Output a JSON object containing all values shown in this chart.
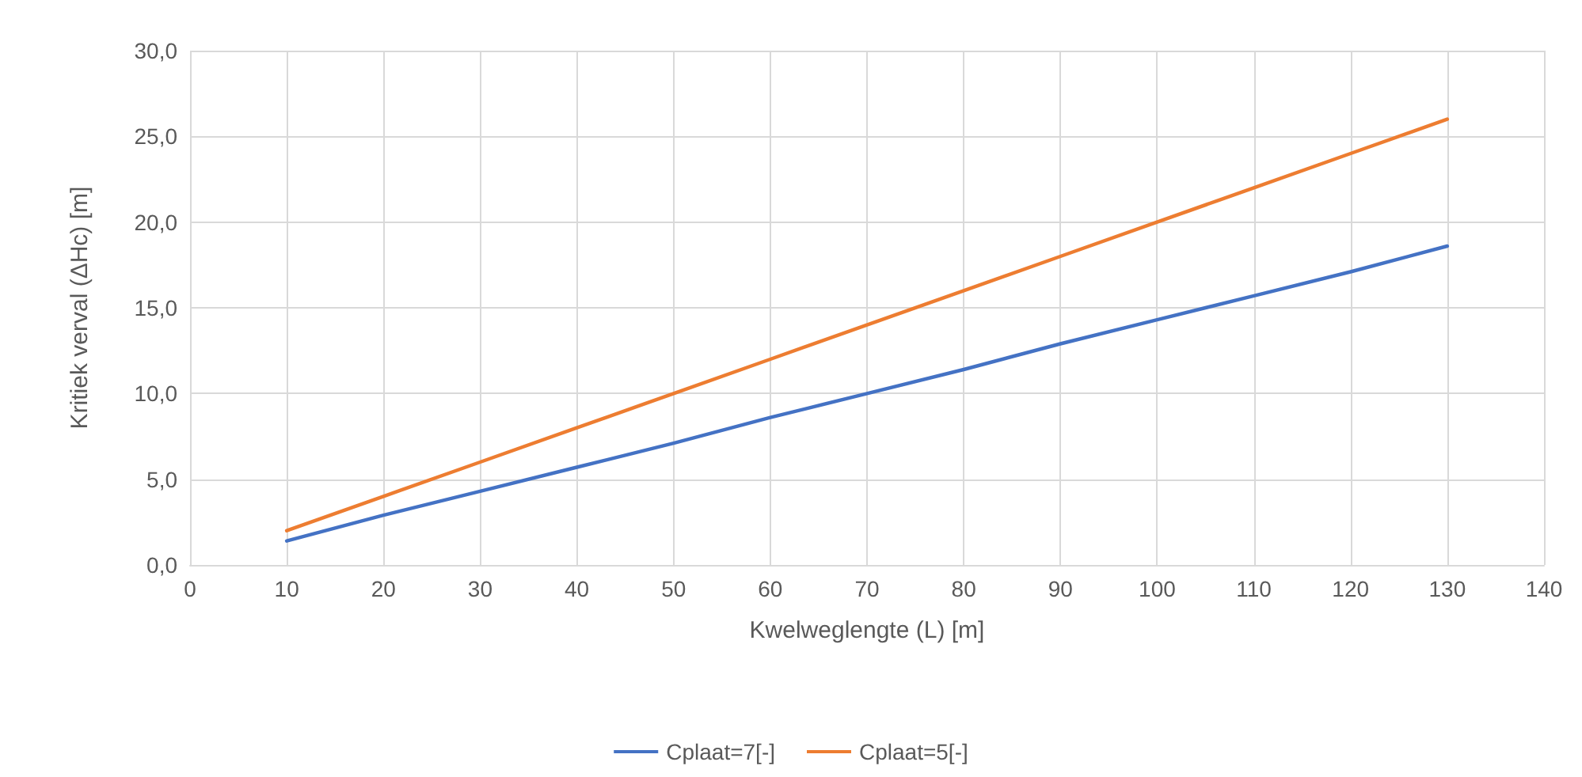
{
  "chart_data": {
    "type": "line",
    "xlabel": "Kwelweglengte (L) [m]",
    "ylabel": "Kritiek verval (ΔHc) [m]",
    "x": [
      10,
      20,
      30,
      40,
      50,
      60,
      70,
      80,
      90,
      100,
      110,
      120,
      130
    ],
    "series": [
      {
        "name": "Cplaat=7[-]",
        "color": "#4472c4",
        "values": [
          1.4,
          2.9,
          4.3,
          5.7,
          7.1,
          8.6,
          10.0,
          11.4,
          12.9,
          14.3,
          15.7,
          17.1,
          18.6
        ]
      },
      {
        "name": "Cplaat=5[-]",
        "color": "#ed7d31",
        "values": [
          2.0,
          4.0,
          6.0,
          8.0,
          10.0,
          12.0,
          14.0,
          16.0,
          18.0,
          20.0,
          22.0,
          24.0,
          26.0
        ]
      }
    ],
    "xlim": [
      0,
      140
    ],
    "xticks": [
      0,
      10,
      20,
      30,
      40,
      50,
      60,
      70,
      80,
      90,
      100,
      110,
      120,
      130,
      140
    ],
    "ylim": [
      0,
      30
    ],
    "yticks": [
      {
        "value": 0,
        "label": "0,0"
      },
      {
        "value": 5,
        "label": "5,0"
      },
      {
        "value": 10,
        "label": "10,0"
      },
      {
        "value": 15,
        "label": "15,0"
      },
      {
        "value": 20,
        "label": "20,0"
      },
      {
        "value": 25,
        "label": "25,0"
      },
      {
        "value": 30,
        "label": "30,0"
      }
    ],
    "grid": true,
    "legend": "bottom",
    "marker": "none",
    "line_style": "solid"
  }
}
